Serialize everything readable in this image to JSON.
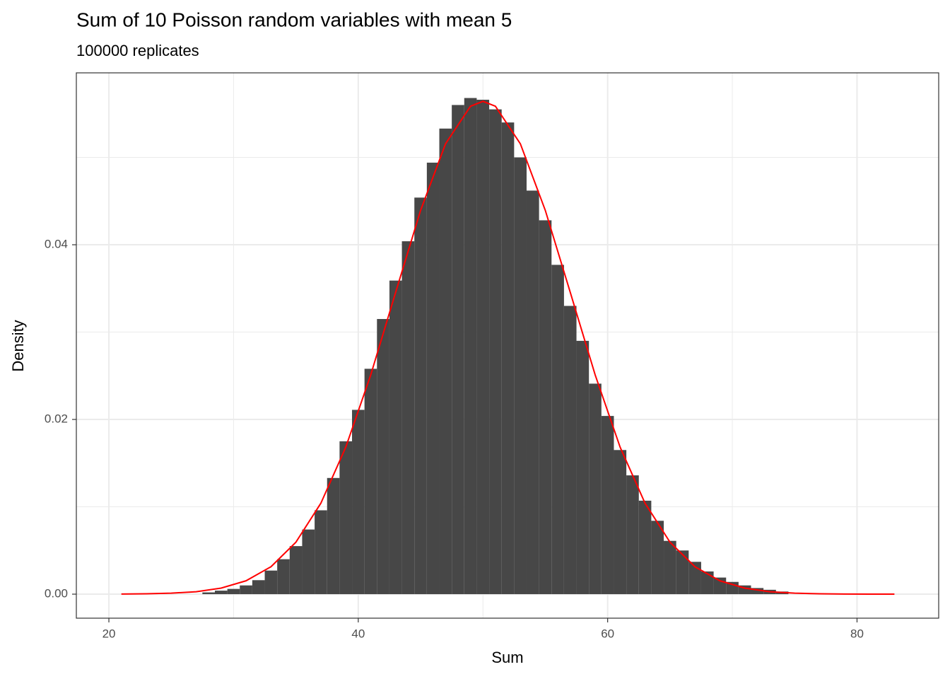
{
  "chart_data": {
    "type": "histogram",
    "title": "Sum of 10 Poisson random variables with mean 5",
    "subtitle": "100000 replicates",
    "x_label": "Sum",
    "y_label": "Density",
    "bins": [
      27.5,
      28.5,
      29.5,
      30.5,
      31.5,
      32.5,
      33.5,
      34.5,
      35.5,
      36.5,
      37.5,
      38.5,
      39.5,
      40.5,
      41.5,
      42.5,
      43.5,
      44.5,
      45.5,
      46.5,
      47.5,
      48.5,
      49.5,
      50.5,
      51.5,
      52.5,
      53.5,
      54.5,
      55.5,
      56.5,
      57.5,
      58.5,
      59.5,
      60.5,
      61.5,
      62.5,
      63.5,
      64.5,
      65.5,
      66.5,
      67.5,
      68.5,
      69.5,
      70.5,
      71.5,
      72.5,
      73.5,
      74.5
    ],
    "values": [
      0.0002,
      0.0004,
      0.0006,
      0.001,
      0.0016,
      0.0027,
      0.004,
      0.0055,
      0.0074,
      0.0096,
      0.0133,
      0.0175,
      0.0211,
      0.0258,
      0.0315,
      0.0359,
      0.0404,
      0.0454,
      0.0494,
      0.0533,
      0.056,
      0.0568,
      0.0566,
      0.0555,
      0.054,
      0.05,
      0.0462,
      0.0428,
      0.0377,
      0.033,
      0.029,
      0.0241,
      0.0204,
      0.0165,
      0.0136,
      0.0107,
      0.0084,
      0.0061,
      0.005,
      0.0037,
      0.0026,
      0.0019,
      0.0014,
      0.001,
      0.0007,
      0.0005,
      0.0003
    ],
    "color": "#474747",
    "overlay": {
      "type": "line",
      "color": "#ff0000",
      "x": [
        21,
        23,
        25,
        27,
        29,
        31,
        33,
        35,
        37,
        39,
        41,
        43,
        45,
        47,
        49,
        50,
        51,
        53,
        55,
        57,
        59,
        61,
        63,
        65,
        67,
        69,
        71,
        73,
        75,
        77,
        79,
        81,
        83
      ],
      "values": [
        1e-05,
        4e-05,
        0.00011,
        0.00028,
        0.00069,
        0.00153,
        0.00314,
        0.00595,
        0.01041,
        0.01683,
        0.0251,
        0.03456,
        0.04394,
        0.05156,
        0.05586,
        0.05642,
        0.05586,
        0.05156,
        0.04394,
        0.03456,
        0.0251,
        0.01683,
        0.01041,
        0.00595,
        0.00314,
        0.00153,
        0.00069,
        0.00028,
        0.00011,
        4e-05,
        1e-05,
        0.0,
        0.0
      ]
    },
    "xlim": [
      17.39,
      86.55
    ],
    "ylim": [
      -0.00275,
      0.05968
    ],
    "xticks": [
      20,
      40,
      60,
      80
    ],
    "yticks": [
      {
        "value": 0,
        "label": "0.00"
      },
      {
        "value": 0.02,
        "label": "0.02"
      },
      {
        "value": 0.04,
        "label": "0.04"
      }
    ],
    "minor_xticks": [
      30,
      50,
      70
    ],
    "minor_yticks": [
      0.01,
      0.03,
      0.05
    ],
    "grid": true
  }
}
